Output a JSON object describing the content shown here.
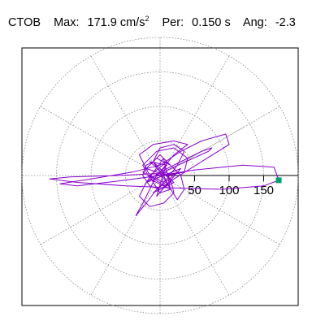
{
  "header": {
    "station": "CTOB",
    "max_label": "Max:",
    "max_value": "171.9",
    "max_unit_base": "cm/s",
    "max_unit_exp": "2",
    "per_label": "Per:",
    "per_value": "0.150 s",
    "ang_label": "Ang:",
    "ang_value": "-2.3"
  },
  "chart_data": {
    "type": "polar-trace",
    "radial_ticks": [
      "50",
      "100",
      "150"
    ],
    "radial_tick_values": [
      50,
      100,
      150
    ],
    "ring_values": [
      50,
      100,
      150,
      200
    ],
    "spoke_angles_deg": [
      0,
      30,
      60,
      90,
      120,
      150,
      180,
      210,
      240,
      270,
      300,
      330
    ],
    "max_radius": 200,
    "trace_color": "#8800cc",
    "marker_color": "#00a070",
    "marker_value": 171.9,
    "marker_angle_deg": -2.3,
    "trace": [
      [
        -5,
        0
      ],
      [
        10,
        15
      ],
      [
        -15,
        20
      ],
      [
        20,
        -10
      ],
      [
        -10,
        -25
      ],
      [
        25,
        5
      ],
      [
        0,
        30
      ],
      [
        -25,
        5
      ],
      [
        15,
        -20
      ],
      [
        5,
        25
      ],
      [
        -20,
        -10
      ],
      [
        30,
        10
      ],
      [
        -5,
        -30
      ],
      [
        10,
        20
      ],
      [
        -15,
        0
      ],
      [
        5,
        -10
      ],
      [
        0,
        5
      ],
      [
        20,
        30
      ],
      [
        40,
        45
      ],
      [
        20,
        50
      ],
      [
        -10,
        45
      ],
      [
        -30,
        30
      ],
      [
        -20,
        10
      ],
      [
        10,
        0
      ],
      [
        35,
        5
      ],
      [
        40,
        25
      ],
      [
        20,
        40
      ],
      [
        -5,
        35
      ],
      [
        -25,
        15
      ],
      [
        -15,
        -5
      ],
      [
        5,
        -15
      ],
      [
        20,
        -5
      ],
      [
        60,
        20
      ],
      [
        100,
        45
      ],
      [
        95,
        60
      ],
      [
        60,
        50
      ],
      [
        30,
        35
      ],
      [
        0,
        15
      ],
      [
        -40,
        5
      ],
      [
        -100,
        -5
      ],
      [
        -145,
        -12
      ],
      [
        -120,
        -15
      ],
      [
        -60,
        -8
      ],
      [
        0,
        0
      ],
      [
        50,
        8
      ],
      [
        120,
        15
      ],
      [
        165,
        12
      ],
      [
        172,
        -7
      ],
      [
        150,
        -15
      ],
      [
        90,
        -20
      ],
      [
        20,
        -18
      ],
      [
        -50,
        -15
      ],
      [
        -120,
        -10
      ],
      [
        -160,
        -5
      ],
      [
        -130,
        -2
      ],
      [
        -60,
        0
      ],
      [
        0,
        3
      ],
      [
        70,
        35
      ],
      [
        75,
        40
      ],
      [
        60,
        35
      ],
      [
        30,
        20
      ],
      [
        0,
        5
      ],
      [
        -20,
        -10
      ],
      [
        -30,
        -30
      ],
      [
        -15,
        -45
      ],
      [
        5,
        -40
      ],
      [
        20,
        -25
      ],
      [
        15,
        -5
      ],
      [
        0,
        10
      ],
      [
        -10,
        20
      ],
      [
        -20,
        15
      ],
      [
        -25,
        0
      ],
      [
        -15,
        -15
      ],
      [
        0,
        -20
      ],
      [
        15,
        -10
      ],
      [
        10,
        5
      ],
      [
        -5,
        0
      ],
      [
        -15,
        -20
      ],
      [
        -25,
        -40
      ],
      [
        -35,
        -58
      ],
      [
        -20,
        -40
      ],
      [
        -5,
        -20
      ],
      [
        10,
        -5
      ],
      [
        25,
        15
      ],
      [
        35,
        35
      ],
      [
        20,
        45
      ],
      [
        0,
        40
      ],
      [
        -10,
        20
      ],
      [
        25,
        -35
      ],
      [
        35,
        -20
      ],
      [
        30,
        0
      ],
      [
        15,
        15
      ],
      [
        -5,
        25
      ],
      [
        -20,
        10
      ],
      [
        -10,
        -10
      ],
      [
        0,
        -25
      ],
      [
        15,
        -20
      ],
      [
        5,
        0
      ]
    ]
  }
}
